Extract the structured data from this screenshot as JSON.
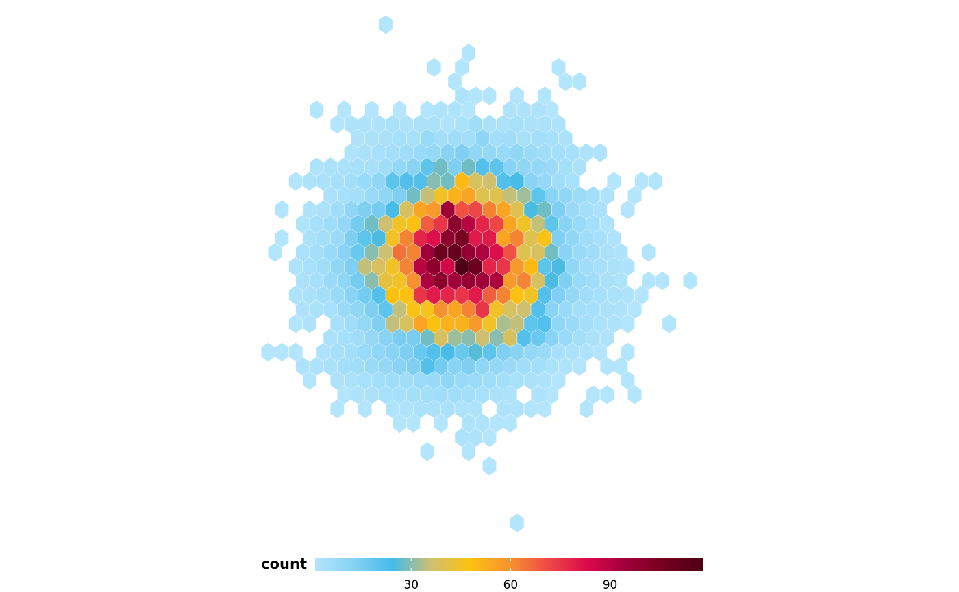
{
  "chart_data": {
    "type": "hexbin",
    "legend": {
      "title": "count",
      "lim": [
        1,
        118
      ],
      "ticks": [
        30,
        60,
        90
      ],
      "colors": [
        "#b3e5fc",
        "#86d2f3",
        "#45bbe8",
        "#d0c070",
        "#fcc20f",
        "#f7932f",
        "#ee4a45",
        "#dc0a4c",
        "#a1003a",
        "#73001f",
        "#4d0015"
      ]
    },
    "rows": [
      {
        "y": 0,
        "x": [
          0
        ],
        "values": [
          1
        ]
      },
      {
        "y": 2,
        "x": [
          6
        ],
        "values": [
          1
        ]
      },
      {
        "y": 3,
        "x": [
          3.5,
          5.5,
          12.5
        ],
        "values": [
          1,
          1,
          1
        ]
      },
      {
        "y": 4,
        "x": [
          5,
          13,
          14
        ],
        "values": [
          1,
          1,
          1
        ]
      },
      {
        "y": 5,
        "x": [
          5.5,
          6.5,
          7.5,
          9.5,
          11.5
        ],
        "values": [
          2,
          1,
          1,
          1,
          1
        ]
      },
      {
        "y": 6,
        "x": [
          -5,
          -3,
          -1,
          1,
          3,
          4,
          5,
          6,
          9,
          10,
          11,
          12
        ],
        "values": [
          1,
          1,
          1,
          1,
          1,
          2,
          2,
          1,
          2,
          2,
          2,
          1
        ]
      },
      {
        "y": 7,
        "x": [
          -3.5,
          -2.5,
          -1.5,
          -0.5,
          0.5,
          1.5,
          2.5,
          3.5,
          4.5,
          5.5,
          6.5,
          7.5,
          8.5,
          9.5,
          10.5,
          11.5,
          12.5
        ],
        "values": [
          1,
          2,
          2,
          2,
          3,
          2,
          3,
          3,
          2,
          3,
          6,
          3,
          3,
          4,
          3,
          3,
          2
        ]
      },
      {
        "y": 8,
        "x": [
          -2,
          -1,
          0,
          1,
          2,
          3,
          4,
          5,
          6,
          7,
          8,
          9,
          10,
          11,
          12,
          13
        ],
        "values": [
          2,
          3,
          3,
          4,
          4,
          8,
          5,
          6,
          5,
          11,
          5,
          6,
          4,
          5,
          4,
          3
        ]
      },
      {
        "y": 9,
        "x": [
          -2.5,
          -1.5,
          -0.5,
          0.5,
          1.5,
          2.5,
          3.5,
          4.5,
          5.5,
          6.5,
          7.5,
          8.5,
          9.5,
          10.5,
          11.5,
          12.5,
          13.5,
          14.5,
          15.5
        ],
        "values": [
          2,
          3,
          4,
          5,
          6,
          8,
          9,
          12,
          14,
          10,
          9,
          8,
          10,
          7,
          6,
          5,
          4,
          2,
          2
        ]
      },
      {
        "y": 10,
        "x": [
          -5,
          -4,
          -3,
          -2,
          -1,
          0,
          1,
          2,
          3,
          4,
          5,
          6,
          7,
          8,
          9,
          10,
          11,
          12,
          13,
          14
        ],
        "values": [
          2,
          3,
          3,
          4,
          4,
          6,
          9,
          12,
          20,
          28,
          14,
          28,
          22,
          20,
          12,
          10,
          9,
          7,
          5,
          3
        ]
      },
      {
        "y": 11,
        "x": [
          -6.5,
          -5.5,
          -4.5,
          -3.5,
          -2.5,
          -1.5,
          -0.5,
          0.5,
          1.5,
          2.5,
          3.5,
          4.5,
          5.5,
          6.5,
          7.5,
          8.5,
          9.5,
          10.5,
          11.5,
          12.5,
          13.5,
          16.5,
          18.5,
          19.5
        ],
        "values": [
          1,
          2,
          3,
          4,
          5,
          8,
          10,
          20,
          22,
          22,
          30,
          28,
          50,
          38,
          36,
          22,
          24,
          12,
          9,
          6,
          4,
          1,
          1,
          1
        ]
      },
      {
        "y": 12,
        "x": [
          -4,
          -3,
          -2,
          -1,
          0,
          1,
          2,
          3,
          4,
          5,
          6,
          7,
          8,
          9,
          10,
          11,
          12,
          13,
          14,
          15,
          16,
          18
        ],
        "values": [
          3,
          4,
          5,
          8,
          10,
          14,
          28,
          35,
          45,
          52,
          55,
          40,
          40,
          35,
          32,
          20,
          12,
          10,
          7,
          5,
          2,
          1
        ]
      },
      {
        "y": 13,
        "x": [
          -7.5,
          -5.5,
          -4.5,
          -3.5,
          -2.5,
          -1.5,
          -0.5,
          0.5,
          1.5,
          2.5,
          3.5,
          4.5,
          5.5,
          6.5,
          7.5,
          8.5,
          9.5,
          10.5,
          11.5,
          12.5,
          13.5,
          14.5,
          15.5,
          17.5
        ],
        "values": [
          1,
          2,
          3,
          6,
          10,
          14,
          16,
          24,
          38,
          55,
          58,
          95,
          70,
          72,
          62,
          55,
          40,
          25,
          28,
          14,
          8,
          5,
          3,
          1
        ]
      },
      {
        "y": 14,
        "x": [
          -6,
          -5,
          -4,
          -3,
          -2,
          -1,
          0,
          1,
          2,
          3,
          4,
          5,
          6,
          7,
          8,
          9,
          10,
          11,
          12,
          13,
          14,
          15,
          16
        ],
        "values": [
          2,
          4,
          6,
          9,
          16,
          28,
          36,
          45,
          48,
          68,
          75,
          100,
          90,
          78,
          72,
          55,
          45,
          35,
          20,
          12,
          8,
          5,
          2
        ]
      },
      {
        "y": 15,
        "x": [
          -7.5,
          -5.5,
          -4.5,
          -3.5,
          -2.5,
          -1.5,
          -0.5,
          0.5,
          1.5,
          2.5,
          3.5,
          4.5,
          5.5,
          6.5,
          7.5,
          8.5,
          9.5,
          10.5,
          11.5,
          12.5,
          13.5,
          14.5,
          15.5,
          16.5
        ],
        "values": [
          1,
          3,
          5,
          7,
          14,
          20,
          25,
          45,
          62,
          78,
          82,
          100,
          105,
          80,
          80,
          55,
          62,
          40,
          47,
          14,
          10,
          6,
          4,
          2
        ]
      },
      {
        "y": 16,
        "x": [
          -8,
          -6,
          -5,
          -4,
          -3,
          -2,
          -1,
          0,
          1,
          2,
          3,
          4,
          5,
          6,
          7,
          8,
          9,
          10,
          11,
          12,
          13,
          14,
          15,
          16,
          17,
          19
        ],
        "values": [
          1,
          3,
          5,
          8,
          12,
          18,
          30,
          36,
          65,
          62,
          95,
          108,
          110,
          98,
          92,
          82,
          70,
          40,
          38,
          28,
          12,
          8,
          6,
          3,
          2,
          1
        ]
      },
      {
        "y": 17,
        "x": [
          -6.5,
          -5.5,
          -4.5,
          -3.5,
          -2.5,
          -1.5,
          -0.5,
          0.5,
          1.5,
          2.5,
          3.5,
          4.5,
          5.5,
          6.5,
          7.5,
          8.5,
          9.5,
          10.5,
          11.5,
          12.5,
          13.5,
          14.5,
          15.5,
          16.5,
          17.5
        ],
        "values": [
          2,
          4,
          6,
          10,
          14,
          35,
          38,
          45,
          62,
          90,
          100,
          85,
          117,
          108,
          78,
          75,
          58,
          50,
          20,
          25,
          10,
          6,
          4,
          3,
          2
        ]
      },
      {
        "y": 18,
        "x": [
          -6,
          -5,
          -4,
          -3,
          -2,
          -1,
          0,
          1,
          2,
          3,
          4,
          5,
          6,
          7,
          8,
          9,
          10,
          11,
          12,
          13,
          14,
          15,
          16,
          17,
          19,
          20,
          22
        ],
        "values": [
          3,
          4,
          7,
          10,
          16,
          30,
          42,
          45,
          60,
          92,
          100,
          95,
          98,
          95,
          92,
          58,
          62,
          38,
          25,
          14,
          8,
          6,
          3,
          2,
          1,
          1,
          1
        ]
      },
      {
        "y": 19,
        "x": [
          -6.5,
          -5.5,
          -4.5,
          -3.5,
          -2.5,
          -1.5,
          -0.5,
          0.5,
          1.5,
          2.5,
          3.5,
          4.5,
          5.5,
          6.5,
          7.5,
          8.5,
          9.5,
          10.5,
          11.5,
          12.5,
          13.5,
          14.5,
          15.5,
          16.5,
          17.5,
          18.5
        ],
        "values": [
          2,
          3,
          5,
          8,
          12,
          16,
          22,
          48,
          48,
          75,
          80,
          78,
          75,
          80,
          68,
          62,
          48,
          45,
          22,
          14,
          9,
          6,
          4,
          3,
          2,
          1
        ]
      },
      {
        "y": 20,
        "x": [
          -6,
          -5,
          -4,
          -3,
          -2,
          -1,
          0,
          1,
          2,
          3,
          4,
          5,
          6,
          7,
          8,
          9,
          10,
          11,
          12,
          13,
          14,
          15,
          16,
          17,
          18
        ],
        "values": [
          2,
          3,
          4,
          7,
          10,
          14,
          20,
          35,
          47,
          46,
          60,
          55,
          62,
          75,
          45,
          38,
          36,
          22,
          12,
          8,
          5,
          4,
          3,
          2,
          1
        ]
      },
      {
        "y": 21,
        "x": [
          -6.5,
          -5.5,
          -3.5,
          -2.5,
          -1.5,
          -0.5,
          0.5,
          1.5,
          2.5,
          3.5,
          4.5,
          5.5,
          6.5,
          7.5,
          8.5,
          9.5,
          10.5,
          11.5,
          12.5,
          13.5,
          14.5,
          15.5,
          16.5,
          17.5,
          20.5
        ],
        "values": [
          1,
          2,
          4,
          6,
          9,
          14,
          35,
          38,
          55,
          48,
          52,
          52,
          58,
          45,
          33,
          35,
          20,
          22,
          10,
          8,
          5,
          3,
          2,
          1,
          1
        ]
      },
      {
        "y": 22,
        "x": [
          -4,
          -3,
          -2,
          -1,
          0,
          1,
          2,
          3,
          4,
          5,
          6,
          7,
          8,
          9,
          10,
          11,
          12,
          13,
          14,
          15,
          16
        ],
        "values": [
          3,
          4,
          6,
          9,
          12,
          15,
          15,
          28,
          38,
          32,
          30,
          36,
          30,
          38,
          22,
          18,
          12,
          8,
          5,
          3,
          2
        ]
      },
      {
        "y": 23,
        "x": [
          -8.5,
          -7.5,
          -6.5,
          -4.5,
          -3.5,
          -2.5,
          -1.5,
          -0.5,
          0.5,
          1.5,
          2.5,
          3.5,
          4.5,
          5.5,
          6.5,
          7.5,
          8.5,
          9.5,
          10.5,
          11.5,
          12.5,
          13.5,
          14.5,
          15.5,
          17.5
        ],
        "values": [
          1,
          1,
          1,
          2,
          4,
          5,
          8,
          10,
          12,
          14,
          18,
          22,
          24,
          18,
          26,
          20,
          14,
          12,
          9,
          7,
          4,
          3,
          2,
          1,
          1
        ]
      },
      {
        "y": 24,
        "x": [
          -6,
          -5,
          -4,
          -3,
          -2,
          -1,
          0,
          1,
          2,
          3,
          4,
          5,
          6,
          7,
          8,
          9,
          10,
          11,
          12,
          13,
          14,
          16,
          17
        ],
        "values": [
          2,
          2,
          3,
          5,
          6,
          8,
          9,
          12,
          14,
          22,
          16,
          12,
          14,
          10,
          9,
          7,
          6,
          5,
          3,
          2,
          1,
          1,
          1
        ]
      },
      {
        "y": 25,
        "x": [
          -5.5,
          -3.5,
          -2.5,
          -1.5,
          -0.5,
          0.5,
          1.5,
          2.5,
          3.5,
          4.5,
          5.5,
          6.5,
          7.5,
          8.5,
          9.5,
          10.5,
          11.5,
          12.5,
          17.5
        ],
        "values": [
          1,
          2,
          3,
          4,
          5,
          6,
          6,
          7,
          8,
          10,
          8,
          7,
          6,
          5,
          4,
          3,
          2,
          1,
          1
        ]
      },
      {
        "y": 26,
        "x": [
          -3,
          -2,
          -1,
          0,
          1,
          2,
          3,
          4,
          5,
          6,
          7,
          8,
          9,
          11,
          12,
          15,
          16,
          18
        ],
        "values": [
          1,
          2,
          3,
          4,
          4,
          5,
          5,
          6,
          6,
          5,
          4,
          3,
          2,
          2,
          1,
          1,
          1,
          1
        ]
      },
      {
        "y": 27,
        "x": [
          -3.5,
          -1.5,
          0.5,
          1.5,
          2.5,
          3.5,
          4.5,
          5.5,
          6.5,
          8.5,
          9.5,
          10.5,
          11.5,
          14.5
        ],
        "values": [
          1,
          1,
          2,
          2,
          3,
          3,
          3,
          2,
          2,
          2,
          2,
          1,
          1,
          1
        ]
      },
      {
        "y": 28,
        "x": [
          1,
          2,
          4,
          6,
          7,
          8,
          9
        ],
        "values": [
          1,
          1,
          1,
          2,
          2,
          1,
          1
        ]
      },
      {
        "y": 29,
        "x": [
          5.5,
          6.5,
          7.5
        ],
        "values": [
          2,
          2,
          1
        ]
      },
      {
        "y": 30,
        "x": [
          3,
          6
        ],
        "values": [
          1,
          1
        ]
      },
      {
        "y": 31,
        "x": [
          7.5
        ],
        "values": [
          1
        ]
      },
      {
        "y": 35,
        "x": [
          9.5
        ],
        "values": [
          1
        ]
      }
    ]
  }
}
